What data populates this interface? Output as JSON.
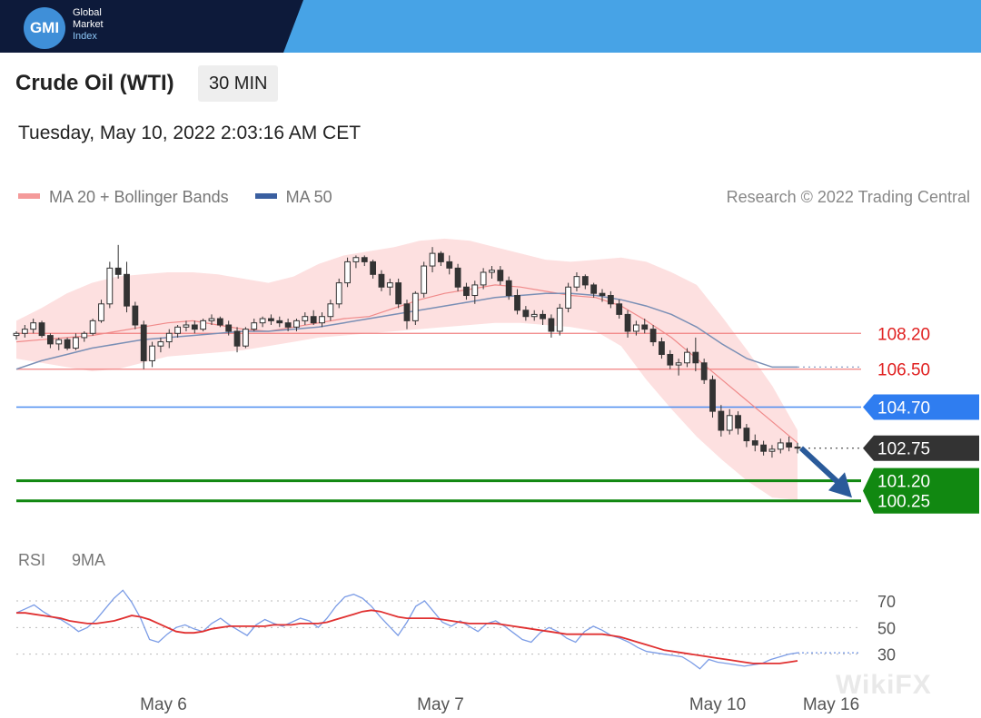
{
  "brand": {
    "logo_text": "GMI",
    "lines": [
      "Global",
      "Market",
      "Index"
    ]
  },
  "header": {
    "title": "Crude Oil (WTI)",
    "interval": "30 MIN",
    "datetime": "Tuesday, May 10, 2022 2:03:16 AM CET"
  },
  "legend": {
    "items": [
      {
        "label": "MA 20 + Bollinger Bands",
        "color": "#f08a8a"
      },
      {
        "label": "MA 50",
        "color": "#3a5fa0"
      }
    ],
    "credit": "Research © 2022 Trading Central"
  },
  "rsi_legend": {
    "items": [
      {
        "label": "RSI",
        "color": "#6a8fe0"
      },
      {
        "label": "9MA",
        "color": "#e02020"
      }
    ]
  },
  "watermark": "WikiFX",
  "colors": {
    "resistance": "#f08080",
    "pivot": "#4a8cf0",
    "support": "#118811",
    "candle_up": "#ffffff",
    "candle_down": "#333333",
    "band_fill": "#fde0e0",
    "ma20": "#f08a8a",
    "ma50": "#7a8fb5",
    "arrow": "#2a5a9a"
  },
  "chart_data": [
    {
      "type": "line",
      "title": "Crude Oil (WTI)",
      "interval": "30 MIN",
      "x_ticks": [
        "May 6",
        "May 7",
        "May 10",
        "May 16"
      ],
      "ylim": [
        98.6,
        113.6
      ],
      "levels": [
        {
          "label": "108.20",
          "value": 108.2,
          "kind": "resistance"
        },
        {
          "label": "106.50",
          "value": 106.5,
          "kind": "resistance"
        },
        {
          "label": "104.70",
          "value": 104.7,
          "kind": "pivot"
        },
        {
          "label": "102.75",
          "value": 102.75,
          "kind": "last"
        },
        {
          "label": "101.20",
          "value": 101.2,
          "kind": "support"
        },
        {
          "label": "100.25",
          "value": 100.25,
          "kind": "support"
        }
      ],
      "series": [
        {
          "name": "MA 20 + Bollinger Bands",
          "values": [
            107.8,
            107.9,
            108.0,
            108.1,
            108.3,
            108.5,
            108.7,
            108.8,
            108.6,
            108.4,
            108.3,
            108.5,
            108.7,
            108.9,
            109.0,
            109.4,
            109.8,
            110.1,
            110.3,
            110.5,
            110.4,
            110.2,
            110.0,
            109.9,
            109.5,
            108.8,
            108.0,
            107.0,
            106.0,
            105.0,
            104.0,
            103.0
          ]
        },
        {
          "name": "MA 50",
          "values": [
            106.5,
            106.9,
            107.2,
            107.5,
            107.7,
            107.9,
            108.0,
            108.1,
            108.2,
            108.3,
            108.3,
            108.4,
            108.5,
            108.7,
            108.9,
            109.1,
            109.3,
            109.5,
            109.7,
            109.9,
            110.0,
            110.1,
            110.1,
            110.0,
            109.8,
            109.5,
            109.1,
            108.5,
            107.7,
            107.0,
            106.6,
            106.6
          ]
        }
      ],
      "candles": [
        [
          108.1,
          108.3,
          107.9,
          108.2
        ],
        [
          108.2,
          108.6,
          108.0,
          108.4
        ],
        [
          108.4,
          108.9,
          108.2,
          108.7
        ],
        [
          108.7,
          108.8,
          108.0,
          108.1
        ],
        [
          108.1,
          108.2,
          107.5,
          107.7
        ],
        [
          107.7,
          108.0,
          107.4,
          107.9
        ],
        [
          107.9,
          108.0,
          107.4,
          107.5
        ],
        [
          107.5,
          108.2,
          107.4,
          108.0
        ],
        [
          108.0,
          108.3,
          107.8,
          108.2
        ],
        [
          108.2,
          108.9,
          108.1,
          108.8
        ],
        [
          108.8,
          109.8,
          108.7,
          109.6
        ],
        [
          109.6,
          111.6,
          109.4,
          111.3
        ],
        [
          111.3,
          112.4,
          110.8,
          111.0
        ],
        [
          111.0,
          111.6,
          109.2,
          109.5
        ],
        [
          109.5,
          109.7,
          108.4,
          108.6
        ],
        [
          108.6,
          108.8,
          106.5,
          106.9
        ],
        [
          106.9,
          107.8,
          106.6,
          107.6
        ],
        [
          107.6,
          108.0,
          107.3,
          107.8
        ],
        [
          107.8,
          108.4,
          107.5,
          108.2
        ],
        [
          108.2,
          108.6,
          108.0,
          108.5
        ],
        [
          108.5,
          108.8,
          108.3,
          108.6
        ],
        [
          108.6,
          108.8,
          108.2,
          108.4
        ],
        [
          108.4,
          108.9,
          108.3,
          108.8
        ],
        [
          108.8,
          109.1,
          108.6,
          108.9
        ],
        [
          108.9,
          109.0,
          108.5,
          108.6
        ],
        [
          108.6,
          108.8,
          108.1,
          108.3
        ],
        [
          108.3,
          108.5,
          107.3,
          107.6
        ],
        [
          107.6,
          108.5,
          107.5,
          108.4
        ],
        [
          108.4,
          108.9,
          108.3,
          108.7
        ],
        [
          108.7,
          109.0,
          108.5,
          108.9
        ],
        [
          108.9,
          109.1,
          108.6,
          108.8
        ],
        [
          108.8,
          109.0,
          108.5,
          108.7
        ],
        [
          108.7,
          108.9,
          108.3,
          108.5
        ],
        [
          108.5,
          108.9,
          108.3,
          108.8
        ],
        [
          108.8,
          109.2,
          108.6,
          109.0
        ],
        [
          109.0,
          109.3,
          108.6,
          108.7
        ],
        [
          108.7,
          109.2,
          108.5,
          109.0
        ],
        [
          109.0,
          109.8,
          108.8,
          109.6
        ],
        [
          109.6,
          110.8,
          109.4,
          110.6
        ],
        [
          110.6,
          111.8,
          110.4,
          111.6
        ],
        [
          111.6,
          111.9,
          111.3,
          111.8
        ],
        [
          111.8,
          111.9,
          111.4,
          111.6
        ],
        [
          111.6,
          111.7,
          110.8,
          111.0
        ],
        [
          111.0,
          111.2,
          110.2,
          110.4
        ],
        [
          110.4,
          110.8,
          110.0,
          110.6
        ],
        [
          110.6,
          110.8,
          109.4,
          109.6
        ],
        [
          109.6,
          109.8,
          108.4,
          108.8
        ],
        [
          108.8,
          110.2,
          108.6,
          110.1
        ],
        [
          110.1,
          111.6,
          109.9,
          111.4
        ],
        [
          111.4,
          112.3,
          111.1,
          112.0
        ],
        [
          112.0,
          112.1,
          111.4,
          111.6
        ],
        [
          111.6,
          111.9,
          111.0,
          111.3
        ],
        [
          111.3,
          111.5,
          110.2,
          110.4
        ],
        [
          110.4,
          110.6,
          109.8,
          110.0
        ],
        [
          110.0,
          110.7,
          109.6,
          110.5
        ],
        [
          110.5,
          111.3,
          110.3,
          111.1
        ],
        [
          111.1,
          111.4,
          110.8,
          111.2
        ],
        [
          111.2,
          111.4,
          110.5,
          110.7
        ],
        [
          110.7,
          110.9,
          109.8,
          110.0
        ],
        [
          110.0,
          110.3,
          109.1,
          109.3
        ],
        [
          109.3,
          109.5,
          108.8,
          109.0
        ],
        [
          109.0,
          109.3,
          108.8,
          109.1
        ],
        [
          109.1,
          109.3,
          108.6,
          108.9
        ],
        [
          108.9,
          109.1,
          108.0,
          108.3
        ],
        [
          108.3,
          109.6,
          108.1,
          109.4
        ],
        [
          109.4,
          110.6,
          109.2,
          110.4
        ],
        [
          110.4,
          111.1,
          110.2,
          110.9
        ],
        [
          110.9,
          111.0,
          110.3,
          110.5
        ],
        [
          110.5,
          110.6,
          109.9,
          110.1
        ],
        [
          110.1,
          110.3,
          109.7,
          110.0
        ],
        [
          110.0,
          110.2,
          109.4,
          109.6
        ],
        [
          109.6,
          109.8,
          108.9,
          109.1
        ],
        [
          109.1,
          109.3,
          108.0,
          108.3
        ],
        [
          108.3,
          108.8,
          108.1,
          108.6
        ],
        [
          108.6,
          108.9,
          108.2,
          108.4
        ],
        [
          108.4,
          108.6,
          107.6,
          107.8
        ],
        [
          107.8,
          108.0,
          107.0,
          107.2
        ],
        [
          107.2,
          107.4,
          106.5,
          106.7
        ],
        [
          106.7,
          107.0,
          106.2,
          106.8
        ],
        [
          106.8,
          107.5,
          106.6,
          107.3
        ],
        [
          107.3,
          108.0,
          106.4,
          106.8
        ],
        [
          106.8,
          107.0,
          105.8,
          106.0
        ],
        [
          106.0,
          106.2,
          104.2,
          104.5
        ],
        [
          104.5,
          104.8,
          103.3,
          103.6
        ],
        [
          103.6,
          104.6,
          103.4,
          104.3
        ],
        [
          104.3,
          104.5,
          103.4,
          103.7
        ],
        [
          103.7,
          103.9,
          102.8,
          103.1
        ],
        [
          103.1,
          103.4,
          102.6,
          102.9
        ],
        [
          102.9,
          103.1,
          102.4,
          102.6
        ],
        [
          102.6,
          102.9,
          102.3,
          102.7
        ],
        [
          102.7,
          103.2,
          102.5,
          103.0
        ],
        [
          103.0,
          103.3,
          102.6,
          102.8
        ],
        [
          102.8,
          103.0,
          102.5,
          102.75
        ]
      ],
      "bollinger": {
        "upper": [
          108.8,
          109.4,
          110.1,
          110.6,
          110.9,
          111.0,
          111.1,
          111.1,
          111.0,
          110.8,
          110.6,
          110.9,
          111.5,
          111.9,
          112.1,
          112.3,
          112.6,
          112.7,
          112.6,
          112.3,
          112.0,
          111.7,
          111.6,
          111.7,
          111.8,
          111.6,
          111.1,
          110.5,
          109.0,
          107.4,
          105.7,
          103.6
        ],
        "lower": [
          107.0,
          106.8,
          106.6,
          106.4,
          106.5,
          106.8,
          107.1,
          107.2,
          107.3,
          107.4,
          107.6,
          107.8,
          108.0,
          108.1,
          108.2,
          108.3,
          108.4,
          108.5,
          108.6,
          108.7,
          108.7,
          108.6,
          108.5,
          108.3,
          107.6,
          106.0,
          104.6,
          103.3,
          102.2,
          101.2,
          100.4,
          100.3
        ]
      }
    },
    {
      "type": "line",
      "title": "RSI",
      "ylim": [
        10,
        85
      ],
      "y_ticks": [
        "70",
        "50",
        "30"
      ],
      "series": [
        {
          "name": "RSI",
          "values": [
            61,
            64,
            67,
            62,
            58,
            56,
            52,
            47,
            50,
            56,
            64,
            72,
            78,
            69,
            57,
            41,
            39,
            45,
            50,
            52,
            49,
            47,
            53,
            57,
            52,
            48,
            44,
            52,
            56,
            53,
            51,
            54,
            57,
            55,
            50,
            57,
            66,
            73,
            75,
            72,
            66,
            58,
            51,
            44,
            54,
            66,
            70,
            62,
            54,
            51,
            55,
            51,
            47,
            53,
            55,
            51,
            46,
            41,
            39,
            46,
            50,
            47,
            42,
            39,
            47,
            51,
            48,
            44,
            42,
            39,
            35,
            32,
            31,
            30,
            29,
            28,
            24,
            19,
            26,
            24,
            23,
            22,
            21,
            22,
            23,
            26,
            28,
            30,
            31
          ]
        },
        {
          "name": "9MA",
          "values": [
            61,
            61,
            60,
            59,
            58,
            57,
            55,
            54,
            53,
            53,
            54,
            55,
            57,
            59,
            58,
            56,
            53,
            50,
            47,
            46,
            46,
            47,
            49,
            50,
            51,
            51,
            51,
            51,
            51,
            52,
            52,
            52,
            53,
            53,
            53,
            54,
            56,
            58,
            60,
            62,
            63,
            62,
            60,
            58,
            57,
            57,
            57,
            57,
            56,
            55,
            54,
            53,
            53,
            53,
            53,
            52,
            51,
            50,
            49,
            48,
            47,
            46,
            45,
            45,
            45,
            45,
            45,
            44,
            43,
            41,
            39,
            37,
            35,
            33,
            32,
            31,
            30,
            29,
            28,
            27,
            26,
            25,
            24,
            23,
            23,
            23,
            23,
            24,
            25
          ]
        }
      ]
    }
  ]
}
